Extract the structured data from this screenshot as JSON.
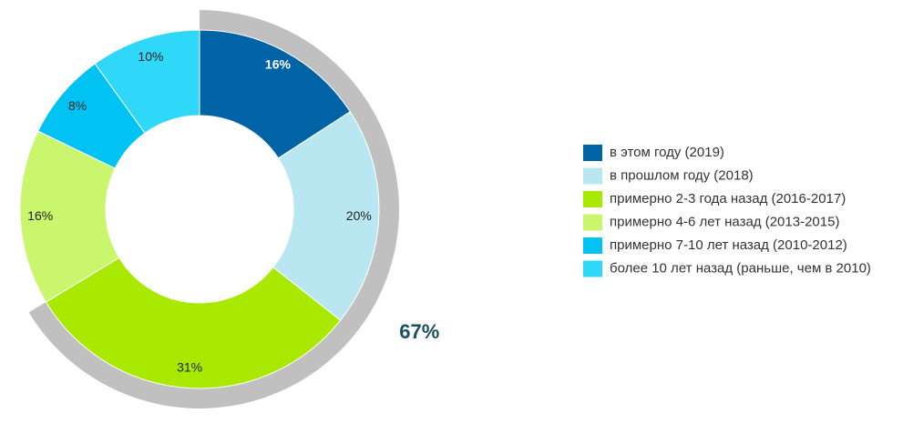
{
  "chart_data": {
    "type": "donut",
    "categories": [
      "в этом году (2019)",
      "в прошлом году (2018)",
      "примерно 2-3 года назад (2016-2017)",
      "примерно 4-6 лет назад (2013-2015)",
      "примерно 7-10 лет назад (2010-2012)",
      "более 10 лет назад (раньше, чем в 2010)"
    ],
    "values": [
      16,
      20,
      31,
      16,
      8,
      10
    ],
    "value_labels": [
      "16%",
      "20%",
      "31%",
      "16%",
      "8%",
      "10%"
    ],
    "colors": [
      "#0063a6",
      "#b9e7f1",
      "#a9e800",
      "#c9f66c",
      "#00c3f4",
      "#2fd7f8"
    ],
    "bracket": {
      "value": 67,
      "label": "67%",
      "color": "#c0c0c0"
    },
    "legend": "right"
  }
}
